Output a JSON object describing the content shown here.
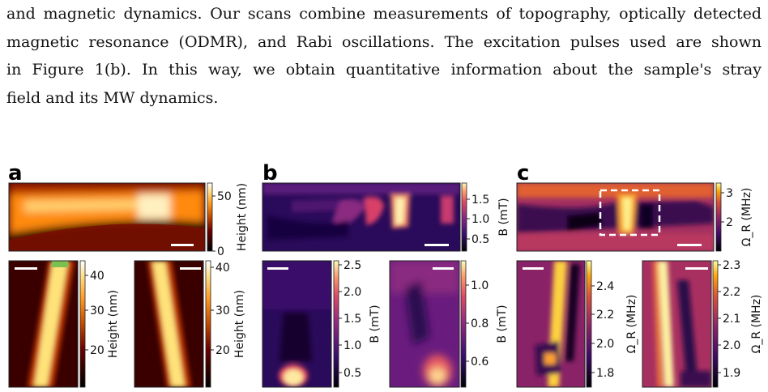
{
  "paragraph": {
    "lines": [
      "and magnetic dynamics. Our scans combine measurements of topography, optically detected",
      "magnetic resonance (ODMR), and Rabi oscillations. The excitation pulses used are shown",
      "in Figure 1(b).  In this way, we obtain quantitative information about the sample's stray",
      "field and its MW dynamics."
    ]
  },
  "figure": {
    "panels": [
      {
        "label": "a",
        "quantity": "Height (nm)",
        "top": {
          "ticks": [
            "50",
            "0"
          ],
          "colormap": "afmhot"
        },
        "bottom_left": {
          "ticks": [
            "40",
            "30",
            "20"
          ],
          "colormap": "afmhot"
        },
        "bottom_right": {
          "ticks": [
            "40",
            "30",
            "20"
          ],
          "colormap": "afmhot"
        }
      },
      {
        "label": "b",
        "quantity": "B (mT)",
        "top": {
          "ticks": [
            "1.5",
            "1.0",
            "0.5"
          ],
          "colormap": "magma"
        },
        "bottom_left": {
          "ticks": [
            "2.5",
            "2.0",
            "1.5",
            "1.0",
            "0.5"
          ],
          "colormap": "magma"
        },
        "bottom_right": {
          "ticks": [
            "1.0",
            "0.8",
            "0.6"
          ],
          "colormap": "magma"
        }
      },
      {
        "label": "c",
        "quantity": "Ω_R (MHz)",
        "top": {
          "ticks": [
            "3",
            "2"
          ],
          "colormap": "inferno"
        },
        "bottom_left": {
          "ticks": [
            "2.4",
            "2.2",
            "2.0",
            "1.8"
          ],
          "colormap": "inferno"
        },
        "bottom_right": {
          "ticks": [
            "2.3",
            "2.2",
            "2.1",
            "2.0",
            "1.9"
          ],
          "colormap": "inferno"
        }
      }
    ]
  }
}
